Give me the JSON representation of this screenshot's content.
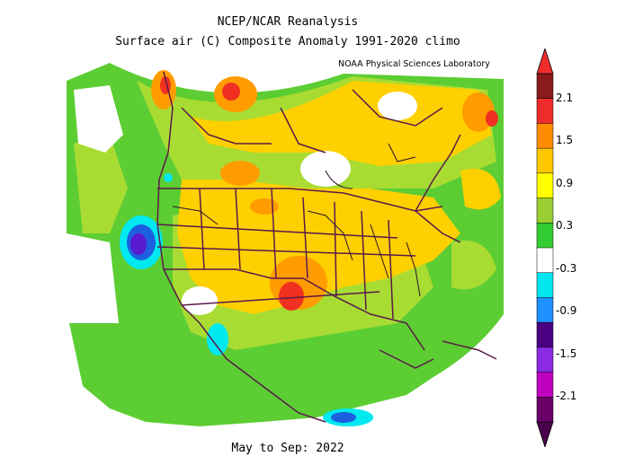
{
  "title_line1": "NCEP/NCAR Reanalysis",
  "title_line2": "Surface air (C) Composite Anomaly 1991-2020 climo",
  "credit": "NOAA Physical Sciences Laboratory",
  "footer": "May to Sep: 2022",
  "colorbar": {
    "ticks": [
      "2.1",
      "1.5",
      "0.9",
      "0.3",
      "-0.3",
      "-0.9",
      "-1.5",
      "-2.1"
    ],
    "colors": [
      "#8b1a1a",
      "#ee2c2c",
      "#ff8c00",
      "#ffc800",
      "#ffff00",
      "#9acd32",
      "#32cd32",
      "#ffffff",
      "#00e5ee",
      "#1e90ff",
      "#4b0082",
      "#8a2be2",
      "#c000c0",
      "#6b006b"
    ]
  },
  "map_colors": {
    "base_green": "#5ccd32",
    "light_green": "#a8dc32",
    "yellow": "#ffd000",
    "orange": "#ff9c00",
    "red": "#f03020",
    "cyan": "#00e8f0",
    "blue": "#1e5fe0",
    "purple": "#5a1ad0",
    "border": "#5a1a4a"
  }
}
